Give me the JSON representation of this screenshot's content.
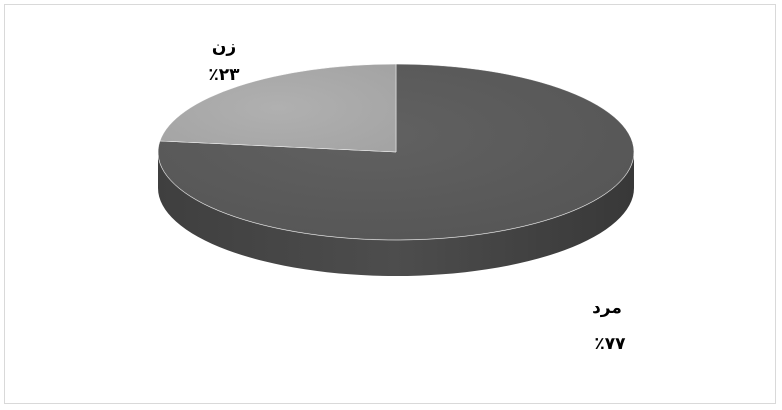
{
  "chart_data": {
    "type": "pie",
    "style": "3d",
    "title": "",
    "slices": [
      {
        "label": "مرد",
        "value": 77,
        "value_label": "٪۷۷",
        "color": "#595959"
      },
      {
        "label": "زن",
        "value": 23,
        "value_label": "٪۲۳",
        "color": "#a6a6a6"
      }
    ],
    "legend": "none"
  }
}
